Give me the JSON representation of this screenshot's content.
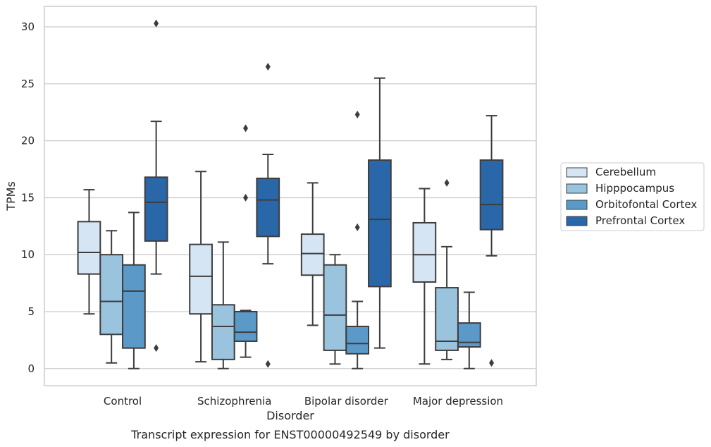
{
  "chart_data": {
    "type": "box",
    "title": "",
    "caption": "Transcript expression for ENST00000492549 by disorder",
    "xlabel": "Disorder",
    "ylabel": "TPMs",
    "ylim": [
      -1.5,
      31.8
    ],
    "yticks": [
      0,
      5,
      10,
      15,
      20,
      25,
      30
    ],
    "grid": "horizontal",
    "legend_position": "right",
    "categories": [
      "Control",
      "Schizophrenia",
      "Bipolar disorder",
      "Major depression"
    ],
    "series": [
      {
        "name": "Cerebellum",
        "color": "#d6e5f4",
        "boxes": [
          {
            "whislo": 4.8,
            "q1": 8.3,
            "med": 10.2,
            "q3": 12.9,
            "whishi": 15.7,
            "fliers": []
          },
          {
            "whislo": 0.6,
            "q1": 4.8,
            "med": 8.1,
            "q3": 10.9,
            "whishi": 17.3,
            "fliers": []
          },
          {
            "whislo": 3.8,
            "q1": 8.2,
            "med": 10.1,
            "q3": 11.8,
            "whishi": 16.3,
            "fliers": []
          },
          {
            "whislo": 0.4,
            "q1": 7.6,
            "med": 10.0,
            "q3": 12.8,
            "whishi": 15.8,
            "fliers": []
          }
        ]
      },
      {
        "name": "Hipppocampus",
        "color": "#9ac4de",
        "boxes": [
          {
            "whislo": 0.5,
            "q1": 3.0,
            "med": 5.9,
            "q3": 10.0,
            "whishi": 12.1,
            "fliers": []
          },
          {
            "whislo": 0.0,
            "q1": 0.8,
            "med": 3.7,
            "q3": 5.6,
            "whishi": 11.1,
            "fliers": []
          },
          {
            "whislo": 0.4,
            "q1": 1.6,
            "med": 4.7,
            "q3": 9.1,
            "whishi": 10.0,
            "fliers": []
          },
          {
            "whislo": 0.8,
            "q1": 1.6,
            "med": 2.4,
            "q3": 7.1,
            "whishi": 10.7,
            "fliers": [
              16.3
            ]
          }
        ]
      },
      {
        "name": "Orbitofontal Cortex",
        "color": "#5b9ac8",
        "boxes": [
          {
            "whislo": 0.0,
            "q1": 1.8,
            "med": 6.8,
            "q3": 9.1,
            "whishi": 13.7,
            "fliers": []
          },
          {
            "whislo": 1.0,
            "q1": 2.4,
            "med": 3.2,
            "q3": 5.0,
            "whishi": 5.1,
            "fliers": [
              21.1,
              15.0
            ]
          },
          {
            "whislo": 0.0,
            "q1": 1.3,
            "med": 2.2,
            "q3": 3.7,
            "whishi": 5.9,
            "fliers": [
              22.3,
              12.4
            ]
          },
          {
            "whislo": 0.0,
            "q1": 1.9,
            "med": 2.3,
            "q3": 4.0,
            "whishi": 6.7,
            "fliers": []
          }
        ]
      },
      {
        "name": "Prefrontal Cortex",
        "color": "#2a67a8",
        "boxes": [
          {
            "whislo": 8.3,
            "q1": 11.2,
            "med": 14.6,
            "q3": 16.8,
            "whishi": 21.7,
            "fliers": [
              30.3,
              1.8
            ]
          },
          {
            "whislo": 9.2,
            "q1": 11.6,
            "med": 14.8,
            "q3": 16.7,
            "whishi": 18.8,
            "fliers": [
              26.5,
              0.4
            ]
          },
          {
            "whislo": 1.8,
            "q1": 7.2,
            "med": 13.1,
            "q3": 18.3,
            "whishi": 25.5,
            "fliers": []
          },
          {
            "whislo": 9.9,
            "q1": 12.2,
            "med": 14.4,
            "q3": 18.3,
            "whishi": 22.2,
            "fliers": [
              0.5
            ]
          }
        ]
      }
    ]
  }
}
